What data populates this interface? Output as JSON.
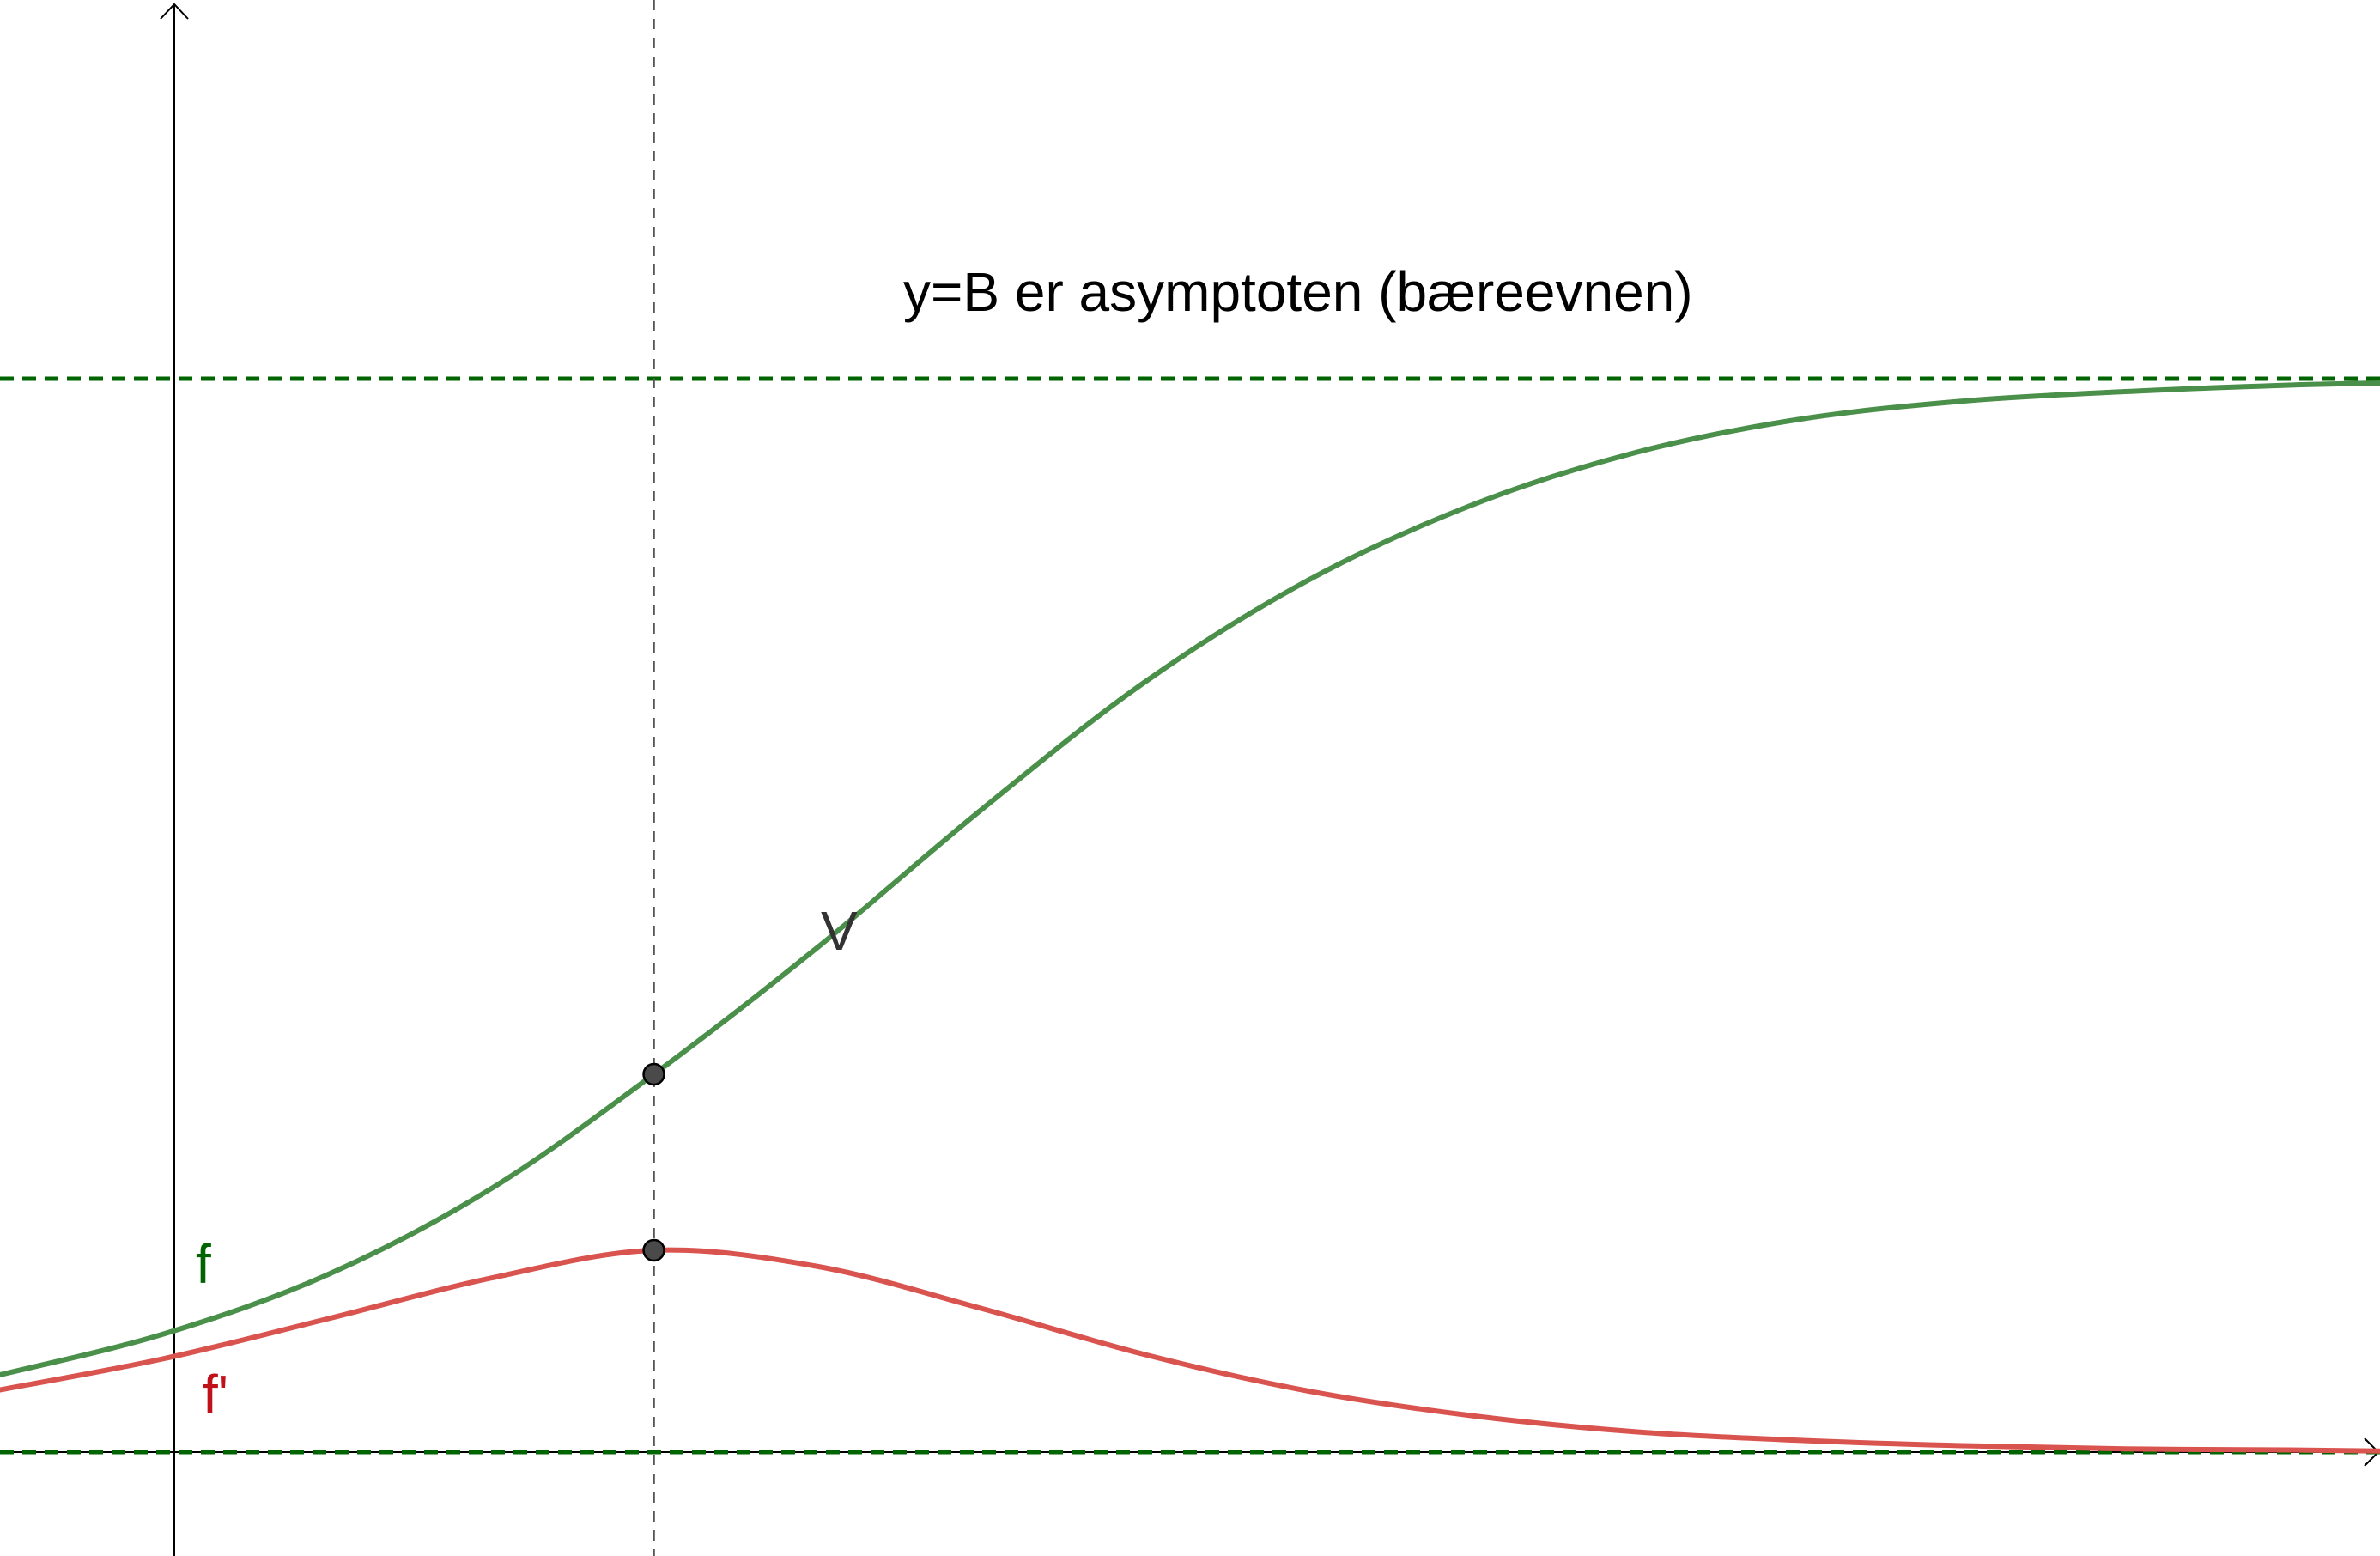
{
  "chart_data": {
    "type": "line",
    "title": "",
    "xlabel": "",
    "ylabel": "",
    "annotation": "y=B er asymptoten (bæreevnen)",
    "series": [
      {
        "name": "f",
        "color": "#4a8f4a",
        "label_color": "#006400",
        "points": [
          [
            -2.0,
            0.072
          ],
          [
            -1.5,
            0.11
          ],
          [
            -1.0,
            0.165
          ],
          [
            -0.5,
            0.245
          ],
          [
            0.0,
            0.352
          ],
          [
            0.5,
            0.47
          ],
          [
            1.0,
            0.598
          ],
          [
            1.5,
            0.717
          ],
          [
            2.0,
            0.812
          ],
          [
            2.5,
            0.882
          ],
          [
            3.0,
            0.931
          ],
          [
            3.5,
            0.962
          ],
          [
            4.0,
            0.979
          ],
          [
            4.5,
            0.988
          ],
          [
            5.0,
            0.994
          ],
          [
            5.28,
            0.996
          ]
        ]
      },
      {
        "name": "f'",
        "color": "#d9534f",
        "label_color": "#c0101a",
        "points": [
          [
            -2.0,
            0.058
          ],
          [
            -1.5,
            0.087
          ],
          [
            -1.0,
            0.124
          ],
          [
            -0.5,
            0.162
          ],
          [
            0.0,
            0.188
          ],
          [
            0.5,
            0.173
          ],
          [
            1.0,
            0.134
          ],
          [
            1.5,
            0.091
          ],
          [
            2.0,
            0.057
          ],
          [
            2.5,
            0.034
          ],
          [
            3.0,
            0.019
          ],
          [
            3.5,
            0.011
          ],
          [
            4.0,
            0.006
          ],
          [
            4.5,
            0.003
          ],
          [
            5.0,
            0.002
          ],
          [
            5.28,
            0.001
          ]
        ]
      }
    ],
    "asymptotes": [
      {
        "orientation": "horizontal",
        "y": 1.0,
        "color": "#006400"
      },
      {
        "orientation": "horizontal",
        "y": 0.0,
        "color": "#006400"
      }
    ],
    "vertical_line": {
      "x": 0.0,
      "color": "#555555"
    },
    "points": [
      {
        "name": "V",
        "x": 0.0,
        "y": 0.352
      },
      {
        "name": "",
        "x": 0.0,
        "y": 0.188
      }
    ],
    "xlim": [
      -2.0,
      5.28
    ],
    "ylim": [
      -0.09,
      1.35
    ],
    "grid": false
  }
}
